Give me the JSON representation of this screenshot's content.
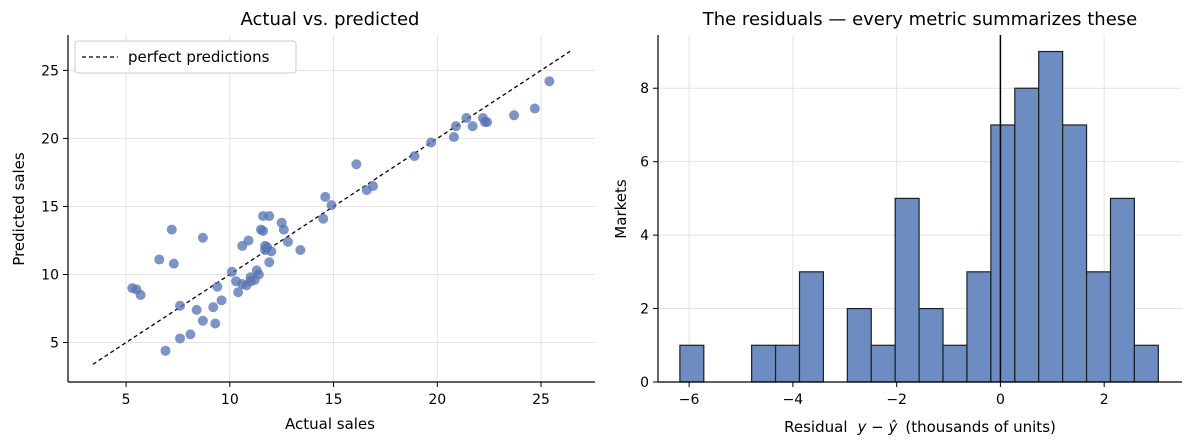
{
  "chart_data": [
    {
      "type": "scatter",
      "title": "Actual vs. predicted",
      "xlabel": "Actual sales",
      "ylabel": "Predicted sales",
      "xlim": [
        2.2,
        27.6
      ],
      "ylim": [
        2.1,
        27.6
      ],
      "xticks": [
        5,
        10,
        15,
        20,
        25
      ],
      "yticks": [
        5,
        10,
        15,
        20,
        25
      ],
      "grid": true,
      "point_color": "#5876b3",
      "reference_line": {
        "name": "perfect predictions",
        "x": [
          3.4,
          26.4
        ],
        "y": [
          3.4,
          26.4
        ],
        "style": "dashed",
        "color": "#000000"
      },
      "legend": {
        "placement": "top-left",
        "entries": [
          "perfect predictions"
        ]
      },
      "points": [
        {
          "x": 5.3,
          "y": 9.0
        },
        {
          "x": 5.5,
          "y": 8.9
        },
        {
          "x": 5.7,
          "y": 8.5
        },
        {
          "x": 6.6,
          "y": 11.1
        },
        {
          "x": 6.9,
          "y": 4.4
        },
        {
          "x": 7.2,
          "y": 13.3
        },
        {
          "x": 7.3,
          "y": 10.8
        },
        {
          "x": 7.6,
          "y": 5.3
        },
        {
          "x": 7.6,
          "y": 7.7
        },
        {
          "x": 8.1,
          "y": 5.6
        },
        {
          "x": 8.4,
          "y": 7.4
        },
        {
          "x": 8.7,
          "y": 12.7
        },
        {
          "x": 8.7,
          "y": 6.6
        },
        {
          "x": 9.2,
          "y": 7.6
        },
        {
          "x": 9.3,
          "y": 6.4
        },
        {
          "x": 9.4,
          "y": 9.1
        },
        {
          "x": 9.6,
          "y": 8.1
        },
        {
          "x": 10.1,
          "y": 10.2
        },
        {
          "x": 10.3,
          "y": 9.5
        },
        {
          "x": 10.4,
          "y": 8.7
        },
        {
          "x": 10.6,
          "y": 9.3
        },
        {
          "x": 10.6,
          "y": 12.1
        },
        {
          "x": 10.8,
          "y": 9.2
        },
        {
          "x": 10.9,
          "y": 12.5
        },
        {
          "x": 11.0,
          "y": 9.5
        },
        {
          "x": 11.0,
          "y": 9.8
        },
        {
          "x": 11.2,
          "y": 9.6
        },
        {
          "x": 11.3,
          "y": 10.3
        },
        {
          "x": 11.4,
          "y": 10.0
        },
        {
          "x": 11.5,
          "y": 13.3
        },
        {
          "x": 11.6,
          "y": 13.2
        },
        {
          "x": 11.6,
          "y": 14.3
        },
        {
          "x": 11.7,
          "y": 11.8
        },
        {
          "x": 11.7,
          "y": 12.1
        },
        {
          "x": 11.8,
          "y": 12.0
        },
        {
          "x": 11.9,
          "y": 14.3
        },
        {
          "x": 11.9,
          "y": 10.9
        },
        {
          "x": 12.0,
          "y": 11.7
        },
        {
          "x": 12.5,
          "y": 13.8
        },
        {
          "x": 12.6,
          "y": 13.3
        },
        {
          "x": 12.8,
          "y": 12.4
        },
        {
          "x": 13.4,
          "y": 11.8
        },
        {
          "x": 14.5,
          "y": 14.1
        },
        {
          "x": 14.6,
          "y": 15.7
        },
        {
          "x": 14.9,
          "y": 15.1
        },
        {
          "x": 16.1,
          "y": 18.1
        },
        {
          "x": 16.6,
          "y": 16.2
        },
        {
          "x": 16.9,
          "y": 16.5
        },
        {
          "x": 18.9,
          "y": 18.7
        },
        {
          "x": 19.7,
          "y": 19.7
        },
        {
          "x": 20.8,
          "y": 20.1
        },
        {
          "x": 20.9,
          "y": 20.9
        },
        {
          "x": 21.4,
          "y": 21.5
        },
        {
          "x": 21.7,
          "y": 20.9
        },
        {
          "x": 22.2,
          "y": 21.5
        },
        {
          "x": 22.3,
          "y": 21.2
        },
        {
          "x": 22.4,
          "y": 21.2
        },
        {
          "x": 23.7,
          "y": 21.7
        },
        {
          "x": 24.7,
          "y": 22.2
        },
        {
          "x": 25.4,
          "y": 24.2
        }
      ]
    },
    {
      "type": "bar",
      "subtype": "histogram",
      "title": "The residuals — every metric summarizes these",
      "xlabel_prefix": "Residual",
      "xlabel_math": "y − ŷ",
      "xlabel_suffix": "(thousands of units)",
      "ylabel": "Markets",
      "xlim": [
        -6.6,
        3.5
      ],
      "ylim": [
        0,
        9.45
      ],
      "xticks": [
        -6,
        -4,
        -2,
        0,
        2
      ],
      "yticks": [
        0,
        2,
        4,
        6,
        8
      ],
      "xtick_labels": [
        "−6",
        "−4",
        "−2",
        "0",
        "2"
      ],
      "grid": true,
      "bar_color": "#6c8cc2",
      "edge_color": "#1f1f1f",
      "vline": {
        "x": 0,
        "color": "#000000"
      },
      "bin_start": -6.1783,
      "bin_width": 0.4611,
      "counts": [
        1,
        0,
        0,
        1,
        1,
        3,
        0,
        2,
        1,
        5,
        2,
        1,
        3,
        7,
        8,
        9,
        7,
        3,
        5,
        1
      ]
    }
  ]
}
